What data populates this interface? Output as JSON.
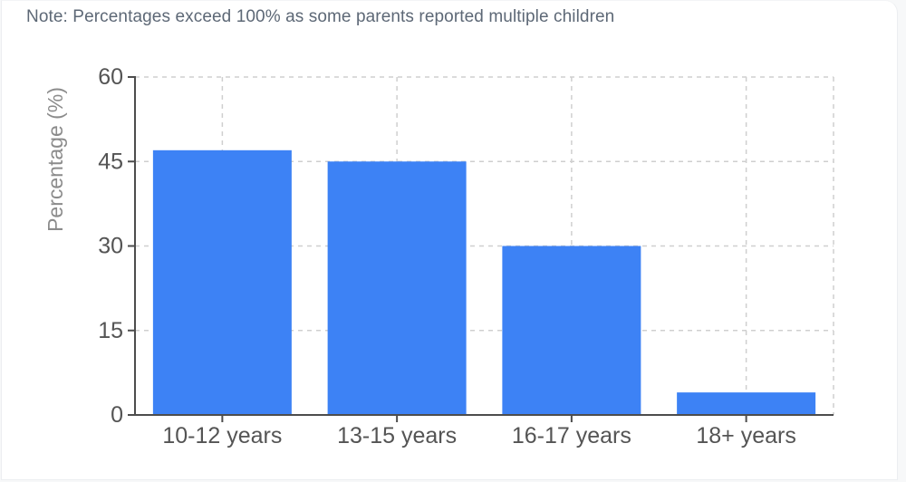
{
  "note": "Note: Percentages exceed 100% as some parents reported multiple children",
  "chart_data": {
    "type": "bar",
    "title": "",
    "categories": [
      "10-12 years",
      "13-15 years",
      "16-17 years",
      "18+ years"
    ],
    "values": [
      47,
      45,
      30,
      4
    ],
    "xlabel": "",
    "ylabel": "Percentage (%)",
    "ylim": [
      0,
      60
    ],
    "yticks": [
      0,
      15,
      30,
      45,
      60
    ],
    "grid": "dashed-both-axes",
    "legend": "none"
  },
  "theme": {
    "bar_color": "#3d82f5",
    "axis_color": "#4d4d4d",
    "grid_color": "#cfcfcf",
    "tick_label_color": "#545454",
    "axis_title_color": "#8b8b8b",
    "note_color": "#5d6876",
    "card_background": "#ffffff",
    "card_border_color": "#eceef1"
  }
}
